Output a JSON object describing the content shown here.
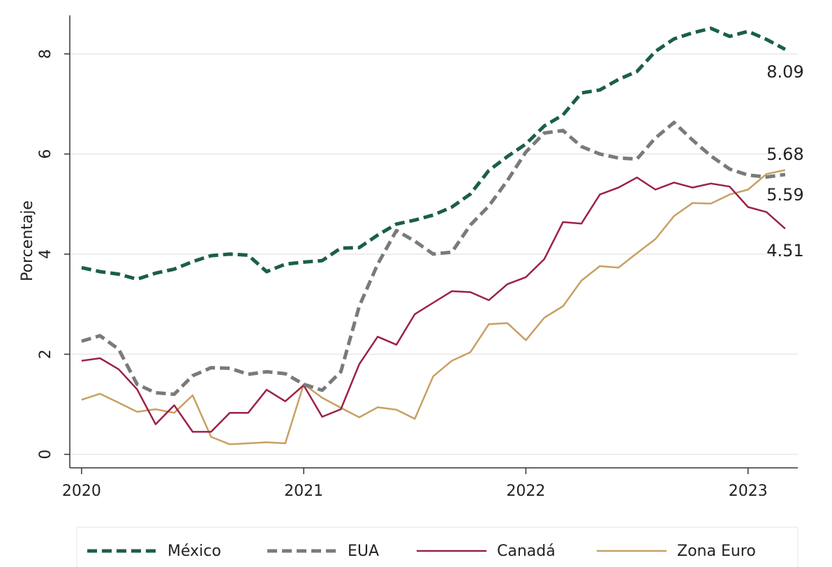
{
  "chart_data": {
    "type": "line",
    "ylabel": "Porcentaje",
    "x": [
      2020,
      2020.083,
      2020.167,
      2020.25,
      2020.333,
      2020.417,
      2020.5,
      2020.583,
      2020.667,
      2020.75,
      2020.833,
      2020.917,
      2021,
      2021.083,
      2021.167,
      2021.25,
      2021.333,
      2021.417,
      2021.5,
      2021.583,
      2021.667,
      2021.75,
      2021.833,
      2021.917,
      2022,
      2022.083,
      2022.167,
      2022.25,
      2022.333,
      2022.417,
      2022.5,
      2022.583,
      2022.667,
      2022.75,
      2022.833,
      2022.917,
      2023,
      2023.083,
      2023.167
    ],
    "series": [
      {
        "name": "México",
        "color": "#1b5e4b",
        "dashed": true,
        "values": [
          3.73,
          3.65,
          3.6,
          3.5,
          3.62,
          3.7,
          3.85,
          3.97,
          4.0,
          3.98,
          3.65,
          3.8,
          3.84,
          3.87,
          4.12,
          4.13,
          4.38,
          4.6,
          4.68,
          4.78,
          4.94,
          5.2,
          5.67,
          5.95,
          6.2,
          6.56,
          6.78,
          7.22,
          7.28,
          7.49,
          7.65,
          8.05,
          8.3,
          8.42,
          8.51,
          8.35,
          8.45,
          8.29,
          8.09
        ]
      },
      {
        "name": "EUA",
        "color": "#7a7a7a",
        "dashed": true,
        "values": [
          2.26,
          2.37,
          2.1,
          1.4,
          1.23,
          1.2,
          1.57,
          1.73,
          1.72,
          1.6,
          1.65,
          1.61,
          1.4,
          1.28,
          1.65,
          2.96,
          3.8,
          4.47,
          4.26,
          4.0,
          4.04,
          4.58,
          4.96,
          5.47,
          6.04,
          6.42,
          6.47,
          6.15,
          6.0,
          5.92,
          5.9,
          6.32,
          6.63,
          6.28,
          5.96,
          5.7,
          5.58,
          5.54,
          5.59
        ]
      },
      {
        "name": "Canadá",
        "color": "#9b2247",
        "dashed": false,
        "values": [
          1.87,
          1.92,
          1.7,
          1.3,
          0.6,
          0.98,
          0.45,
          0.45,
          0.83,
          0.83,
          1.29,
          1.06,
          1.38,
          0.75,
          0.9,
          1.8,
          2.35,
          2.19,
          2.8,
          3.03,
          3.26,
          3.24,
          3.08,
          3.4,
          3.54,
          3.9,
          4.64,
          4.61,
          5.19,
          5.33,
          5.53,
          5.29,
          5.43,
          5.33,
          5.41,
          5.35,
          4.94,
          4.84,
          4.51
        ]
      },
      {
        "name": "Zona Euro",
        "color": "#c8a063",
        "dashed": false,
        "values": [
          1.09,
          1.21,
          1.03,
          0.85,
          0.9,
          0.83,
          1.18,
          0.35,
          0.2,
          0.22,
          0.24,
          0.22,
          1.4,
          1.13,
          0.93,
          0.74,
          0.94,
          0.89,
          0.71,
          1.56,
          1.87,
          2.04,
          2.6,
          2.62,
          2.28,
          2.73,
          2.96,
          3.47,
          3.76,
          3.73,
          4.02,
          4.3,
          4.76,
          5.02,
          5.01,
          5.19,
          5.29,
          5.6,
          5.68
        ]
      }
    ],
    "annotations": [
      "8.09",
      "5.68",
      "5.59",
      "4.51"
    ],
    "xlim": [
      2019.947,
      2023.224
    ],
    "xticks": [
      2020,
      2021,
      2022,
      2023
    ],
    "ylim": [
      -0.27,
      8.77
    ],
    "yticks": [
      0,
      2,
      4,
      6,
      8
    ],
    "grid": true,
    "legend": "bottom"
  }
}
